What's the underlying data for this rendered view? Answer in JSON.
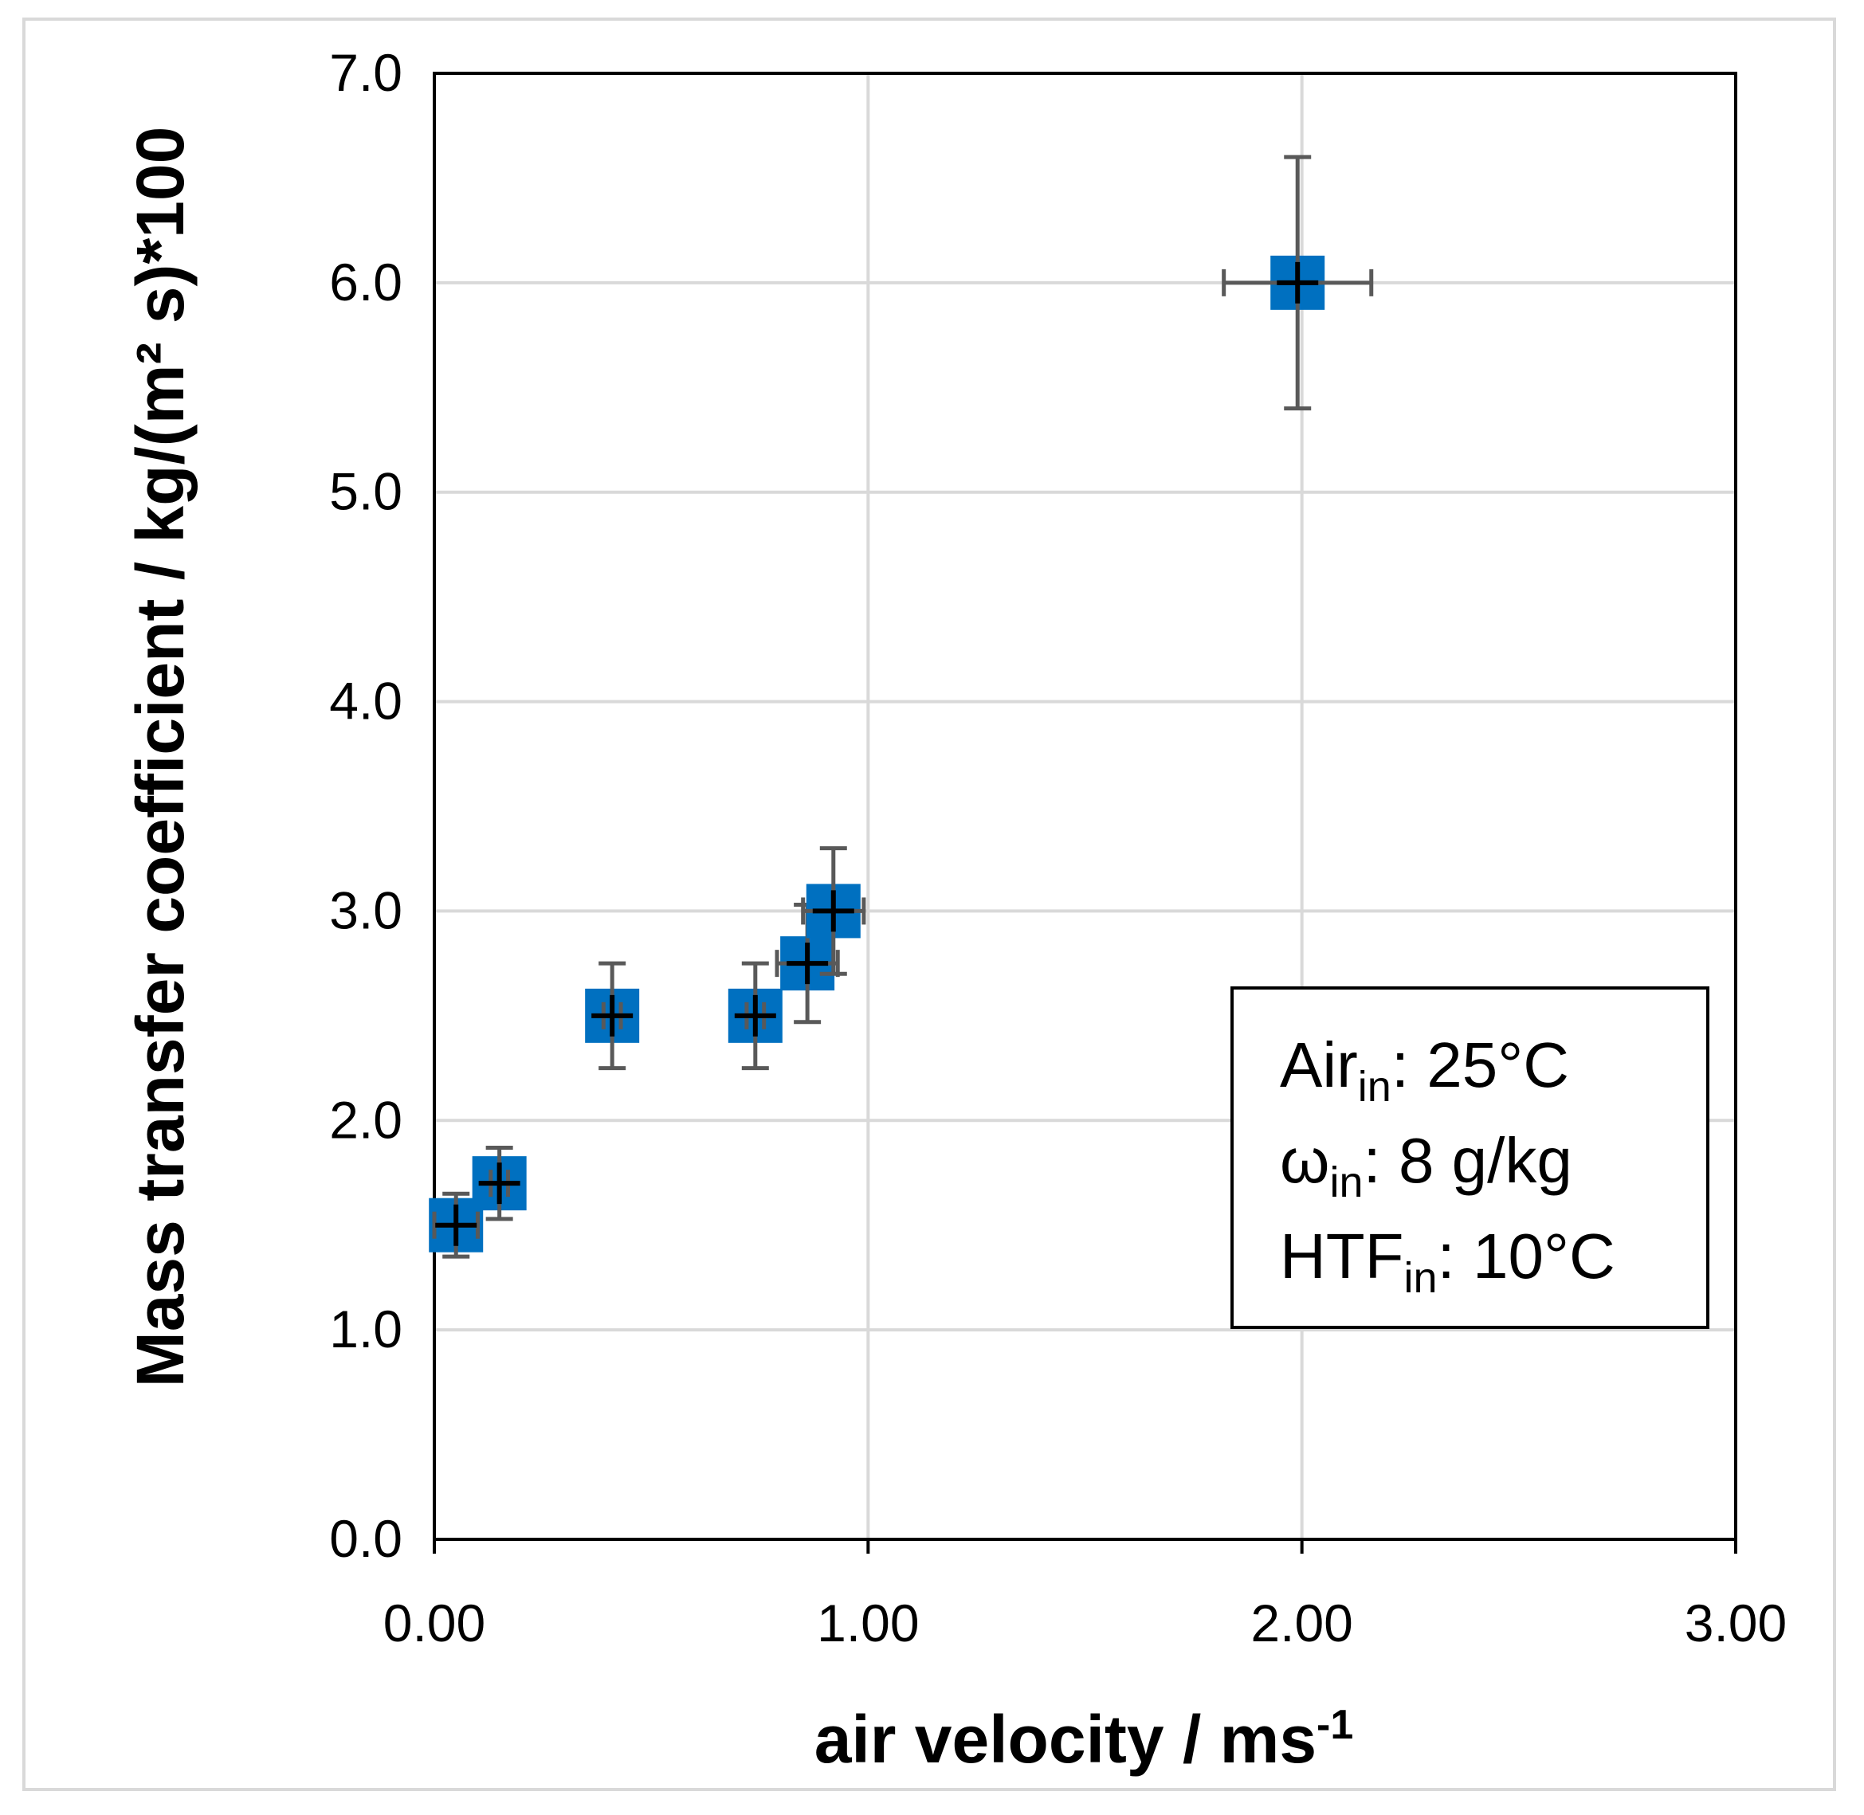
{
  "chart_data": {
    "type": "scatter",
    "title": "",
    "xlabel": "air velocity / ms",
    "xlabel_sup": "-1",
    "ylabel": "Mass  transfer coefficient / kg/(m² s)*100",
    "xlim": [
      0,
      3
    ],
    "ylim": [
      0,
      7
    ],
    "xticks": [
      "0.00",
      "1.00",
      "2.00",
      "3.00"
    ],
    "yticks": [
      "0.0",
      "1.0",
      "2.0",
      "3.0",
      "4.0",
      "5.0",
      "6.0",
      "7.0"
    ],
    "grid": true,
    "marker_color": "#0070c0",
    "errorbar_color": "#595959",
    "series": [
      {
        "name": "Mass transfer coefficient",
        "points": [
          {
            "x": 0.05,
            "y": 1.5,
            "x_err": 0.05,
            "y_err": 0.15
          },
          {
            "x": 0.15,
            "y": 1.7,
            "x_err": 0.02,
            "y_err": 0.17
          },
          {
            "x": 0.41,
            "y": 2.5,
            "x_err": 0.02,
            "y_err": 0.25
          },
          {
            "x": 0.74,
            "y": 2.5,
            "x_err": 0.02,
            "y_err": 0.25
          },
          {
            "x": 0.86,
            "y": 2.75,
            "x_err": 0.07,
            "y_err": 0.28
          },
          {
            "x": 0.92,
            "y": 3.0,
            "x_err": 0.07,
            "y_err": 0.3
          },
          {
            "x": 1.99,
            "y": 6.0,
            "x_err": 0.17,
            "y_err": 0.6
          }
        ]
      }
    ],
    "annotation": {
      "lines": [
        {
          "main": "Air",
          "sub": "in",
          "rest": ": 25°C"
        },
        {
          "main": "ω",
          "sub": "in",
          "rest": ": 8 g/kg"
        },
        {
          "main": "HTF",
          "sub": "in",
          "rest": ": 10°C"
        }
      ]
    }
  }
}
